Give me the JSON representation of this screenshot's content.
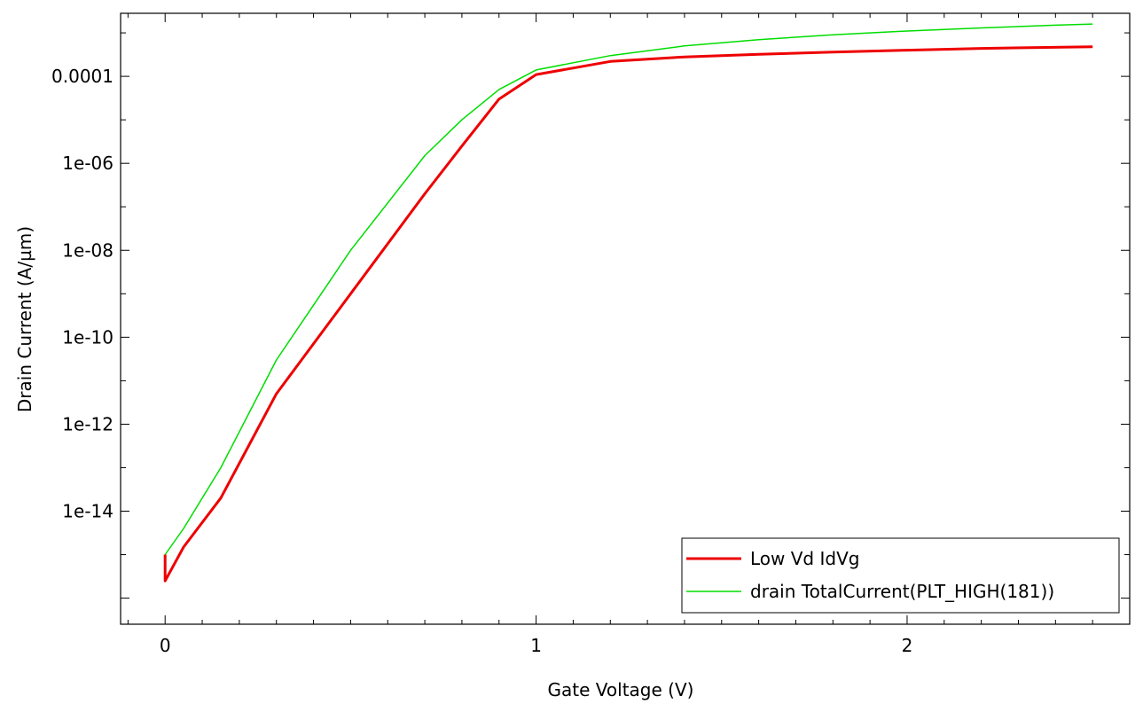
{
  "chart_data": {
    "type": "line",
    "xlabel": "Gate Voltage (V)",
    "ylabel": "Drain Current (A/µm)",
    "xlim": [
      -0.12,
      2.6
    ],
    "ylim_log10": [
      -16.6,
      -2.55
    ],
    "y_scale": "log",
    "grid": false,
    "legend_position": "bottom-right",
    "x_ticks": [
      {
        "value": 0,
        "label": "0"
      },
      {
        "value": 1,
        "label": "1"
      },
      {
        "value": 2,
        "label": "2"
      }
    ],
    "y_ticks": [
      {
        "exp": -4,
        "label": "0.0001"
      },
      {
        "exp": -6,
        "label": "1e-06"
      },
      {
        "exp": -8,
        "label": "1e-08"
      },
      {
        "exp": -10,
        "label": "1e-10"
      },
      {
        "exp": -12,
        "label": "1e-12"
      },
      {
        "exp": -14,
        "label": "1e-14"
      }
    ],
    "series": [
      {
        "name": "Low Vd IdVg",
        "color": "#ee0000",
        "width": 3,
        "x": [
          0.0,
          0.0,
          0.0,
          0.05,
          0.15,
          0.3,
          0.5,
          0.7,
          0.8,
          0.9,
          1.0,
          1.2,
          1.4,
          1.6,
          1.8,
          2.0,
          2.2,
          2.5
        ],
        "y": [
          1e-15,
          3e-16,
          2.5e-16,
          1.5e-15,
          2e-14,
          5e-12,
          1e-09,
          2e-07,
          2.5e-06,
          3e-05,
          0.00011,
          0.00022,
          0.00028,
          0.00032,
          0.00036,
          0.0004,
          0.00044,
          0.00048
        ]
      },
      {
        "name": "drain TotalCurrent(PLT_HIGH(181))",
        "color": "#00dd00",
        "width": 1.5,
        "x": [
          0.0,
          0.05,
          0.15,
          0.3,
          0.5,
          0.7,
          0.8,
          0.9,
          1.0,
          1.2,
          1.4,
          1.6,
          1.8,
          2.0,
          2.2,
          2.4,
          2.5
        ],
        "y": [
          1e-15,
          4e-15,
          1e-13,
          3e-11,
          1e-08,
          1.5e-06,
          1e-05,
          5e-05,
          0.00014,
          0.0003,
          0.0005,
          0.0007,
          0.0009,
          0.0011,
          0.0013,
          0.0015,
          0.0016
        ]
      }
    ]
  }
}
